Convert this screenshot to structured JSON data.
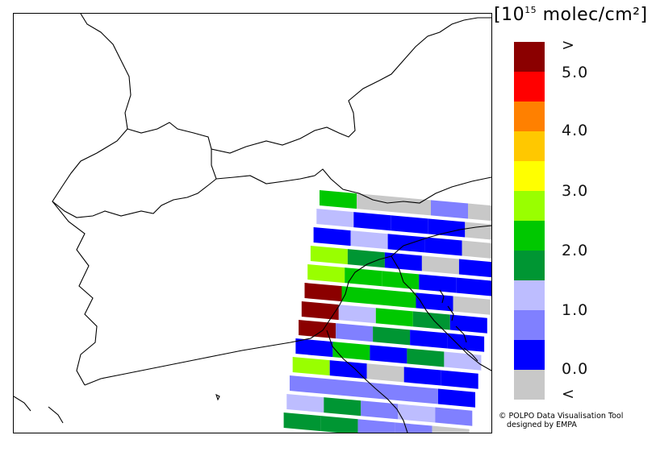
{
  "legend": {
    "title_prefix": "[10",
    "title_exponent": "15",
    "title_suffix": " molec/cm²]",
    "colors": [
      "#8b0000",
      "#ff0000",
      "#ff8000",
      "#ffc800",
      "#ffff00",
      "#99ff00",
      "#00c800",
      "#009633",
      "#bdbdff",
      "#8080ff",
      "#0000ff",
      "#c8c8c8"
    ],
    "labels": [
      ">",
      "5.0",
      "4.0",
      "3.0",
      "2.0",
      "1.0",
      "0.0",
      "<"
    ]
  },
  "credit": {
    "line1": "© POLPO Data Visualisation Tool",
    "line2": "designed by EMPA"
  },
  "map": {
    "swath_rows": [
      [
        "#00c800",
        "#c8c8c8",
        "#c8c8c8",
        "#8080ff",
        "#c8c8c8"
      ],
      [
        "#bdbdff",
        "#0000ff",
        "#0000ff",
        "#0000ff",
        "#c8c8c8"
      ],
      [
        "#0000ff",
        "#bdbdff",
        "#0000ff",
        "#0000ff",
        "#c8c8c8"
      ],
      [
        "#99ff00",
        "#009633",
        "#0000ff",
        "#c8c8c8",
        "#0000ff"
      ],
      [
        "#99ff00",
        "#00c800",
        "#00c800",
        "#0000ff",
        "#0000ff"
      ],
      [
        "#8b0000",
        "#00c800",
        "#00c800",
        "#0000ff",
        "#c8c8c8"
      ],
      [
        "#8b0000",
        "#bdbdff",
        "#00c800",
        "#009633",
        "#0000ff"
      ],
      [
        "#8b0000",
        "#8080ff",
        "#009633",
        "#0000ff",
        "#0000ff"
      ],
      [
        "#0000ff",
        "#00c800",
        "#0000ff",
        "#009633",
        "#bdbdff"
      ],
      [
        "#99ff00",
        "#0000ff",
        "#c8c8c8",
        "#0000ff",
        "#0000ff"
      ],
      [
        "#8080ff",
        "#8080ff",
        "#8080ff",
        "#8080ff",
        "#0000ff"
      ],
      [
        "#bdbdff",
        "#009633",
        "#8080ff",
        "#bdbdff",
        "#8080ff"
      ],
      [
        "#009633",
        "#009633",
        "#8080ff",
        "#8080ff",
        "#c8c8c8"
      ]
    ]
  }
}
